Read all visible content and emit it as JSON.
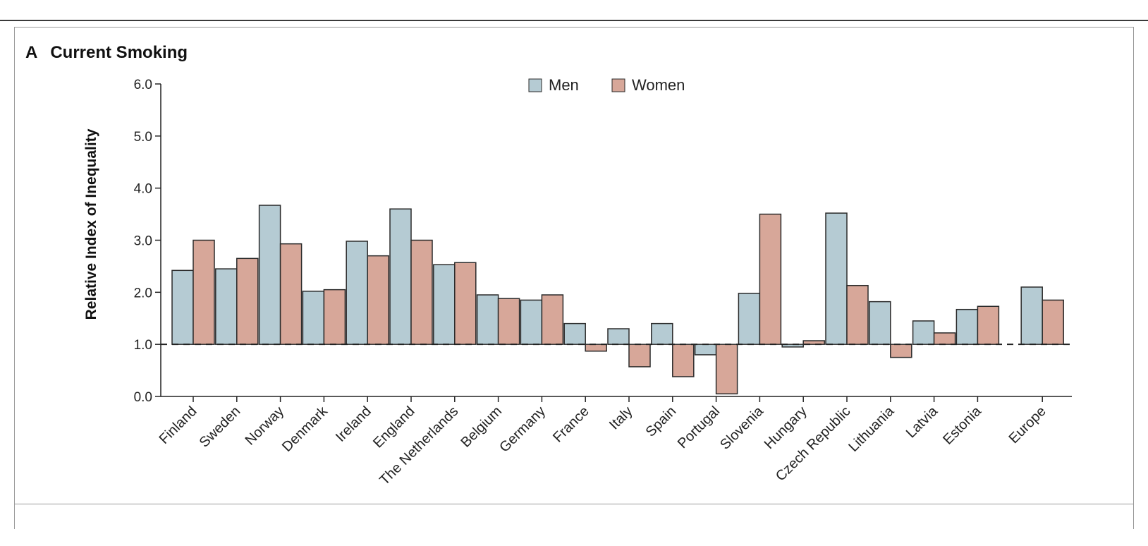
{
  "panel": {
    "letter": "A",
    "title": "Current Smoking"
  },
  "colors": {
    "men": "#b5cbd3",
    "women": "#d7a799",
    "stroke": "#2b2b2b"
  },
  "chart_data": {
    "type": "bar",
    "title": "Current Smoking",
    "xlabel": "",
    "ylabel": "Relative Index of Inequality",
    "ylim": [
      0,
      6
    ],
    "yticks": [
      "0.0",
      "1.0",
      "2.0",
      "3.0",
      "4.0",
      "5.0",
      "6.0"
    ],
    "reference_line": 1.0,
    "legend_position": "top-center",
    "categories": [
      "Finland",
      "Sweden",
      "Norway",
      "Denmark",
      "Ireland",
      "England",
      "The Netherlands",
      "Belgium",
      "Germany",
      "France",
      "Italy",
      "Spain",
      "Portugal",
      "Slovenia",
      "Hungary",
      "Czech Republic",
      "Lithuania",
      "Latvia",
      "Estonia",
      "Europe"
    ],
    "series": [
      {
        "name": "Men",
        "values": [
          2.42,
          2.45,
          3.67,
          2.02,
          2.98,
          3.6,
          2.53,
          1.95,
          1.85,
          1.4,
          1.3,
          1.4,
          0.8,
          1.98,
          0.95,
          3.52,
          1.82,
          1.45,
          1.67,
          2.1
        ]
      },
      {
        "name": "Women",
        "values": [
          3.0,
          2.65,
          2.93,
          2.05,
          2.7,
          3.0,
          2.57,
          1.88,
          1.95,
          0.87,
          0.57,
          0.38,
          0.05,
          3.5,
          1.07,
          2.13,
          0.75,
          1.22,
          1.73,
          1.85
        ]
      }
    ]
  }
}
